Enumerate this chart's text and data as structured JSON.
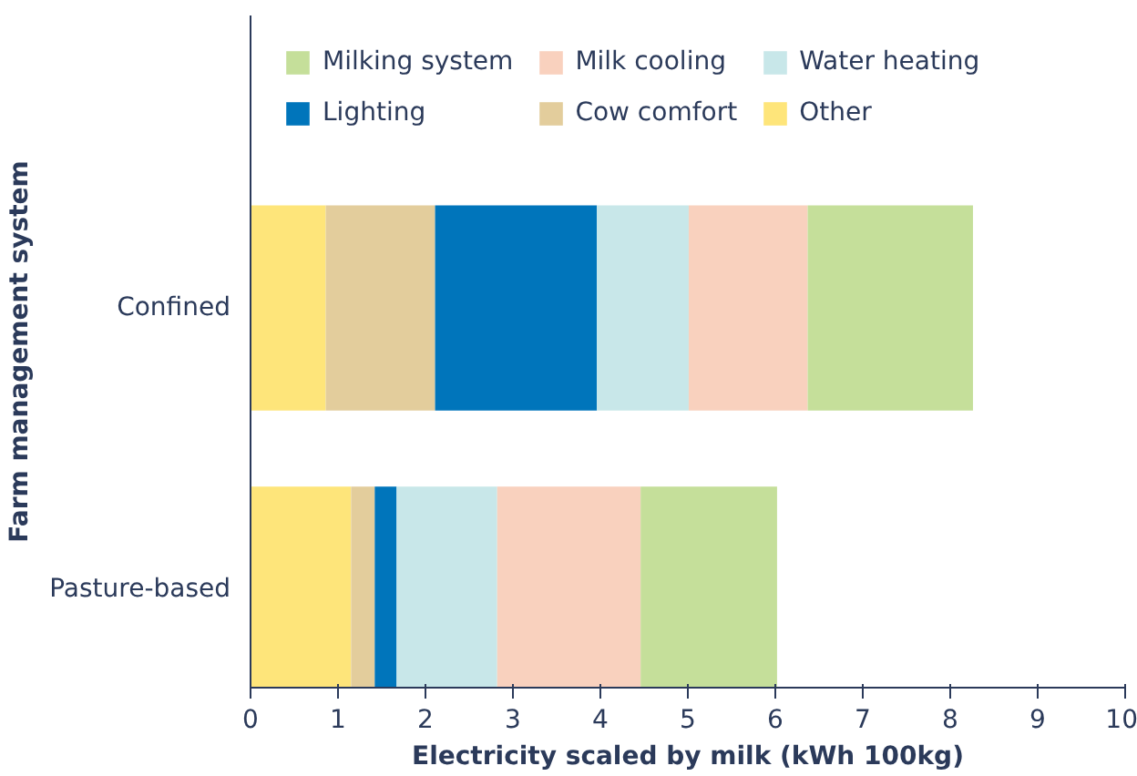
{
  "chart_data": {
    "type": "bar",
    "orientation": "horizontal",
    "stacked": true,
    "xlabel": "Electricity scaled by milk (kWh 100kg)",
    "ylabel": "Farm management system",
    "categories": [
      "Confined",
      "Pasture-based"
    ],
    "xlim": [
      0,
      10
    ],
    "xticks": [
      0,
      1,
      2,
      3,
      4,
      5,
      6,
      7,
      8,
      9,
      10
    ],
    "grid": false,
    "legend": "top",
    "series": [
      {
        "name": "Other",
        "color": "#fee57a",
        "values": [
          0.86,
          1.15
        ]
      },
      {
        "name": "Cow comfort",
        "color": "#e3cd9c",
        "values": [
          1.25,
          0.27
        ]
      },
      {
        "name": "Lighting",
        "color": "#0075bb",
        "values": [
          1.85,
          0.25
        ]
      },
      {
        "name": "Water heating",
        "color": "#c8e7e9",
        "values": [
          1.05,
          1.15
        ]
      },
      {
        "name": "Milk cooling",
        "color": "#f9d1be",
        "values": [
          1.36,
          1.64
        ]
      },
      {
        "name": "Milking system",
        "color": "#c5df9a",
        "values": [
          1.89,
          1.56
        ]
      }
    ]
  }
}
